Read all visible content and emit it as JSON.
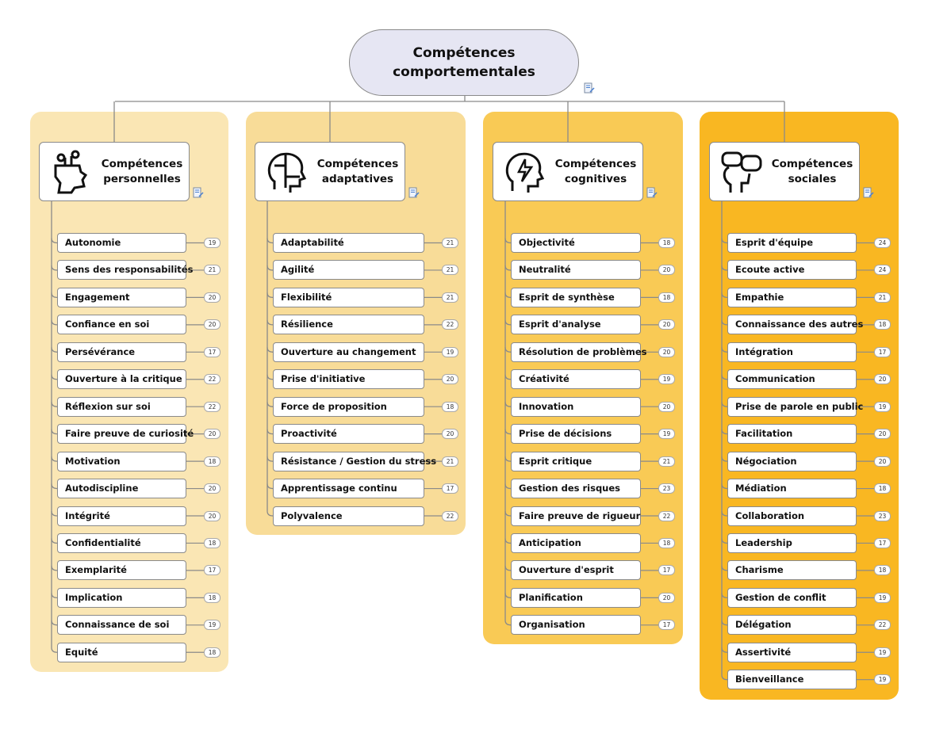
{
  "root": {
    "title": "Compétences\ncomportementales"
  },
  "colors": {
    "root_fill": "#e6e6f3",
    "column_backgrounds": [
      "#fae6b4",
      "#f8dc98",
      "#f9ca55",
      "#f9b722"
    ]
  },
  "columns": [
    {
      "title": "Compétences\npersonnelles",
      "icon": "head-with-plant-icon",
      "items": [
        {
          "label": "Autonomie",
          "count": "19"
        },
        {
          "label": "Sens des responsabilités",
          "count": "21"
        },
        {
          "label": "Engagement",
          "count": "20"
        },
        {
          "label": "Confiance en soi",
          "count": "20"
        },
        {
          "label": "Persévérance",
          "count": "17"
        },
        {
          "label": "Ouverture à la critique",
          "count": "22"
        },
        {
          "label": "Réflexion sur soi",
          "count": "22"
        },
        {
          "label": "Faire preuve de curiosité",
          "count": "20"
        },
        {
          "label": "Motivation",
          "count": "18"
        },
        {
          "label": "Autodiscipline",
          "count": "20"
        },
        {
          "label": "Intégrité",
          "count": "20"
        },
        {
          "label": "Confidentialité",
          "count": "18"
        },
        {
          "label": "Exemplarité",
          "count": "17"
        },
        {
          "label": "Implication",
          "count": "18"
        },
        {
          "label": "Connaissance de soi",
          "count": "19"
        },
        {
          "label": "Equité",
          "count": "18"
        }
      ]
    },
    {
      "title": "Compétences\nadaptatives",
      "icon": "puzzle-head-icon",
      "items": [
        {
          "label": "Adaptabilité",
          "count": "21"
        },
        {
          "label": "Agilité",
          "count": "21"
        },
        {
          "label": "Flexibilité",
          "count": "21"
        },
        {
          "label": "Résilience",
          "count": "22"
        },
        {
          "label": "Ouverture au changement",
          "count": "19"
        },
        {
          "label": "Prise d'initiative",
          "count": "20"
        },
        {
          "label": "Force de proposition",
          "count": "18"
        },
        {
          "label": "Proactivité",
          "count": "20"
        },
        {
          "label": "Résistance / Gestion du stress",
          "count": "21"
        },
        {
          "label": "Apprentissage continu",
          "count": "17"
        },
        {
          "label": "Polyvalence",
          "count": "22"
        }
      ]
    },
    {
      "title": "Compétences\ncognitives",
      "icon": "brain-lightning-head-icon",
      "items": [
        {
          "label": "Objectivité",
          "count": "18"
        },
        {
          "label": "Neutralité",
          "count": "20"
        },
        {
          "label": "Esprit de synthèse",
          "count": "18"
        },
        {
          "label": "Esprit d'analyse",
          "count": "20"
        },
        {
          "label": "Résolution de problèmes",
          "count": "20"
        },
        {
          "label": "Créativité",
          "count": "19"
        },
        {
          "label": "Innovation",
          "count": "20"
        },
        {
          "label": "Prise de décisions",
          "count": "19"
        },
        {
          "label": "Esprit critique",
          "count": "21"
        },
        {
          "label": "Gestion des risques",
          "count": "23"
        },
        {
          "label": "Faire preuve de rigueur",
          "count": "22"
        },
        {
          "label": "Anticipation",
          "count": "18"
        },
        {
          "label": "Ouverture d'esprit",
          "count": "17"
        },
        {
          "label": "Planification",
          "count": "20"
        },
        {
          "label": "Organisation",
          "count": "17"
        }
      ]
    },
    {
      "title": "Compétences\nsociales",
      "icon": "speech-bubbles-head-icon",
      "items": [
        {
          "label": "Esprit d'équipe",
          "count": "24"
        },
        {
          "label": "Ecoute active",
          "count": "24"
        },
        {
          "label": "Empathie",
          "count": "21"
        },
        {
          "label": "Connaissance des autres",
          "count": "18"
        },
        {
          "label": "Intégration",
          "count": "17"
        },
        {
          "label": "Communication",
          "count": "20"
        },
        {
          "label": "Prise de parole en public",
          "count": "19"
        },
        {
          "label": "Facilitation",
          "count": "20"
        },
        {
          "label": "Négociation",
          "count": "20"
        },
        {
          "label": "Médiation",
          "count": "18"
        },
        {
          "label": "Collaboration",
          "count": "23"
        },
        {
          "label": "Leadership",
          "count": "17"
        },
        {
          "label": "Charisme",
          "count": "18"
        },
        {
          "label": "Gestion de conflit",
          "count": "19"
        },
        {
          "label": "Délégation",
          "count": "22"
        },
        {
          "label": "Assertivité",
          "count": "19"
        },
        {
          "label": "Bienveillance",
          "count": "19"
        }
      ]
    }
  ]
}
